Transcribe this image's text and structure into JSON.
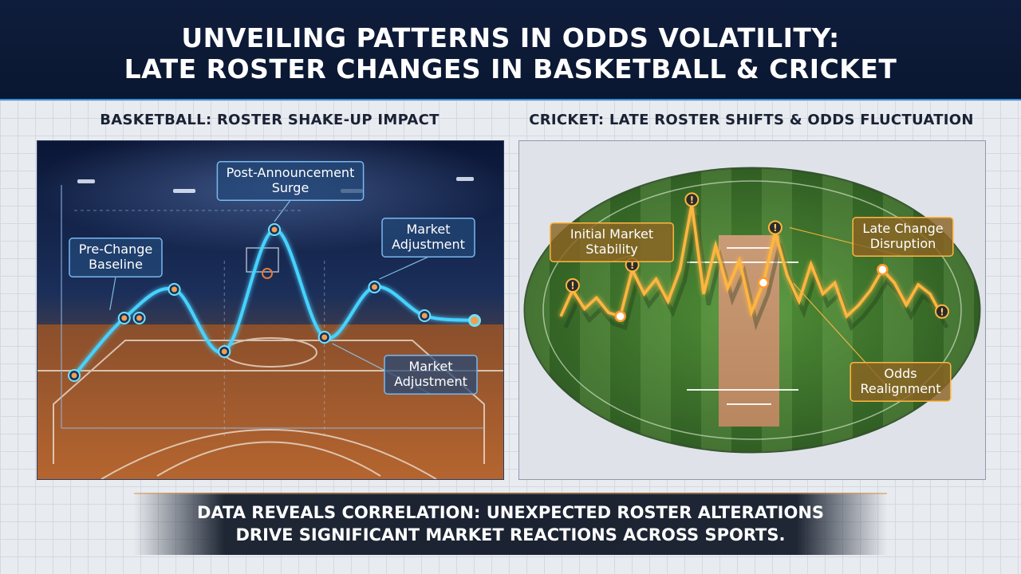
{
  "header": {
    "title_line1": "UNVEILING PATTERNS IN ODDS VOLATILITY:",
    "title_line2": "LATE ROSTER CHANGES IN BASKETBALL & CRICKET"
  },
  "footer": {
    "line1": "DATA REVEALS CORRELATION: UNEXPECTED ROSTER ALTERATIONS",
    "line2": "DRIVE SIGNIFICANT MARKET REACTIONS ACROSS SPORTS."
  },
  "colors": {
    "header_bg": "#0f1d3c",
    "basketball_line": "#46d2ff",
    "cricket_line": "#ffb640",
    "marker": "#f0a050"
  },
  "chart_data": [
    {
      "type": "line",
      "title": "BASKETBALL: ROSTER SHAKE-UP IMPACT",
      "xlabel": "",
      "ylabel": "",
      "ylim": [
        0,
        100
      ],
      "grid": false,
      "series": [
        {
          "x": [
            1,
            2,
            3,
            4,
            5,
            6,
            7,
            8,
            9
          ],
          "values": [
            22,
            46,
            58,
            32,
            83,
            38,
            59,
            47,
            45
          ],
          "markers": [
            1,
            2,
            3,
            4,
            5,
            6,
            7,
            8,
            9
          ]
        }
      ],
      "baseline": 46,
      "annotations": [
        {
          "text": "Pre-Change\nBaseline",
          "x": 2
        },
        {
          "text": "Post-Announcement\nSurge",
          "x": 5
        },
        {
          "text": "Market\nAdjustment",
          "x": 7
        },
        {
          "text": "Market\nAdjustment",
          "x": 6
        }
      ]
    },
    {
      "type": "line",
      "title": "CRICKET: LATE ROSTER SHIFTS & ODDS FLUCTUATION",
      "xlabel": "",
      "ylabel": "",
      "ylim": [
        0,
        100
      ],
      "grid": false,
      "series": [
        {
          "x": [
            1,
            2,
            3,
            4,
            5,
            6,
            7,
            8,
            9,
            10,
            11,
            12,
            13,
            14,
            15,
            16,
            17,
            18,
            19,
            20,
            21,
            22,
            23,
            24,
            25,
            26,
            27,
            28,
            29,
            30,
            31,
            32,
            33
          ],
          "values": [
            30,
            44,
            34,
            40,
            32,
            30,
            55,
            42,
            50,
            38,
            55,
            90,
            42,
            68,
            45,
            60,
            32,
            48,
            75,
            52,
            38,
            58,
            42,
            48,
            30,
            36,
            44,
            55,
            48,
            36,
            47,
            42,
            30
          ],
          "warning_points": [
            2,
            7,
            12,
            19,
            33
          ],
          "circle_points": [
            6,
            18,
            28
          ]
        }
      ],
      "annotations": [
        {
          "text": "Initial Market\nStability",
          "x": 4
        },
        {
          "text": "Late Change\nDisruption",
          "x": 20
        },
        {
          "text": "Odds\nRealignment",
          "x": 26
        }
      ]
    }
  ]
}
